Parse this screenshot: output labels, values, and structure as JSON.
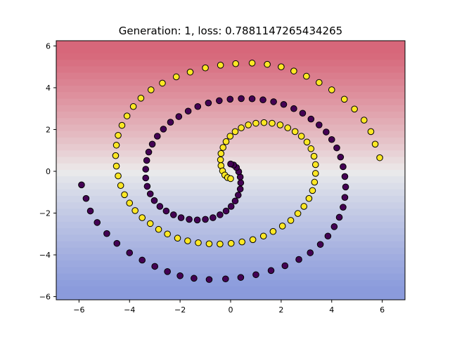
{
  "chart_data": {
    "type": "scatter",
    "title": "Generation: 1, loss: 0.7881147265434265",
    "xlabel": "",
    "ylabel": "",
    "xlim": [
      -6.9,
      6.9
    ],
    "ylim": [
      -6.15,
      6.25
    ],
    "x_ticks": [
      -6,
      -4,
      -2,
      0,
      2,
      4,
      6
    ],
    "y_ticks": [
      -6,
      -4,
      -2,
      0,
      2,
      4,
      6
    ],
    "grid": false,
    "legend": "none",
    "background": {
      "kind": "horizontal-bands",
      "top_color": "#d7677a",
      "mid_color": "#ececec",
      "bottom_color": "#8b9bdc",
      "note_values": "decision surface varies with y only"
    },
    "class_colors": {
      "0": "#440154",
      "1": "#fde725"
    },
    "edge_color": "#000000",
    "series": [
      {
        "class": 1,
        "points": [
          [
            5.9,
            0.65
          ],
          [
            5.72,
            1.3
          ],
          [
            5.55,
            1.9
          ],
          [
            5.28,
            2.45
          ],
          [
            4.9,
            2.98
          ],
          [
            4.5,
            3.45
          ],
          [
            4.0,
            3.9
          ],
          [
            3.5,
            4.25
          ],
          [
            3.0,
            4.55
          ],
          [
            2.5,
            4.8
          ],
          [
            2.0,
            5.0
          ],
          [
            1.45,
            5.12
          ],
          [
            0.85,
            5.18
          ],
          [
            0.2,
            5.15
          ],
          [
            -0.4,
            5.08
          ],
          [
            -1.0,
            4.95
          ],
          [
            -1.6,
            4.75
          ],
          [
            -2.15,
            4.52
          ],
          [
            -2.7,
            4.22
          ],
          [
            -3.15,
            3.9
          ],
          [
            -3.55,
            3.5
          ],
          [
            -3.85,
            3.1
          ],
          [
            -4.1,
            2.65
          ],
          [
            -4.3,
            2.2
          ],
          [
            -4.45,
            1.72
          ],
          [
            -4.52,
            1.25
          ],
          [
            -4.55,
            0.75
          ],
          [
            -4.52,
            0.25
          ],
          [
            -4.45,
            -0.22
          ],
          [
            -4.35,
            -0.68
          ],
          [
            -4.2,
            -1.12
          ],
          [
            -4.0,
            -1.52
          ],
          [
            -3.78,
            -1.88
          ],
          [
            -3.5,
            -2.22
          ],
          [
            -3.18,
            -2.5
          ],
          [
            -2.85,
            -2.78
          ],
          [
            -2.5,
            -3.0
          ],
          [
            -2.1,
            -3.2
          ],
          [
            -1.7,
            -3.33
          ],
          [
            -1.28,
            -3.42
          ],
          [
            -0.85,
            -3.47
          ],
          [
            -0.42,
            -3.48
          ],
          [
            0.02,
            -3.45
          ],
          [
            0.45,
            -3.38
          ],
          [
            0.88,
            -3.27
          ],
          [
            1.3,
            -3.1
          ],
          [
            1.68,
            -2.88
          ],
          [
            2.05,
            -2.62
          ],
          [
            2.38,
            -2.35
          ],
          [
            2.66,
            -2.02
          ],
          [
            2.9,
            -1.68
          ],
          [
            3.1,
            -1.3
          ],
          [
            3.24,
            -0.92
          ],
          [
            3.32,
            -0.52
          ],
          [
            3.36,
            -0.1
          ],
          [
            3.36,
            0.32
          ],
          [
            3.3,
            0.72
          ],
          [
            3.18,
            1.08
          ],
          [
            3.02,
            1.4
          ],
          [
            2.8,
            1.68
          ],
          [
            2.55,
            1.9
          ],
          [
            2.26,
            2.08
          ],
          [
            1.96,
            2.22
          ],
          [
            1.64,
            2.3
          ],
          [
            1.32,
            2.33
          ],
          [
            1.0,
            2.3
          ],
          [
            0.7,
            2.22
          ],
          [
            0.42,
            2.08
          ],
          [
            0.18,
            1.9
          ],
          [
            -0.02,
            1.68
          ],
          [
            -0.18,
            1.42
          ],
          [
            -0.3,
            1.14
          ],
          [
            -0.38,
            0.85
          ],
          [
            -0.4,
            0.55
          ],
          [
            -0.38,
            0.27
          ],
          [
            -0.32,
            0.02
          ],
          [
            -0.23,
            -0.18
          ],
          [
            -0.12,
            -0.3
          ],
          [
            0.0,
            -0.35
          ]
        ]
      },
      {
        "class": 0,
        "points": [
          [
            -5.9,
            -0.65
          ],
          [
            -5.72,
            -1.3
          ],
          [
            -5.55,
            -1.9
          ],
          [
            -5.28,
            -2.45
          ],
          [
            -4.9,
            -2.98
          ],
          [
            -4.5,
            -3.45
          ],
          [
            -4.0,
            -3.9
          ],
          [
            -3.5,
            -4.25
          ],
          [
            -3.0,
            -4.55
          ],
          [
            -2.5,
            -4.8
          ],
          [
            -2.0,
            -5.0
          ],
          [
            -1.45,
            -5.12
          ],
          [
            -0.85,
            -5.18
          ],
          [
            -0.2,
            -5.15
          ],
          [
            0.4,
            -5.08
          ],
          [
            1.0,
            -4.95
          ],
          [
            1.6,
            -4.75
          ],
          [
            2.15,
            -4.52
          ],
          [
            2.7,
            -4.22
          ],
          [
            3.15,
            -3.9
          ],
          [
            3.55,
            -3.5
          ],
          [
            3.85,
            -3.1
          ],
          [
            4.1,
            -2.65
          ],
          [
            4.3,
            -2.2
          ],
          [
            4.45,
            -1.72
          ],
          [
            4.52,
            -1.25
          ],
          [
            4.55,
            -0.75
          ],
          [
            4.52,
            -0.25
          ],
          [
            4.45,
            0.22
          ],
          [
            4.35,
            0.68
          ],
          [
            4.2,
            1.12
          ],
          [
            4.0,
            1.52
          ],
          [
            3.78,
            1.88
          ],
          [
            3.5,
            2.22
          ],
          [
            3.18,
            2.5
          ],
          [
            2.85,
            2.78
          ],
          [
            2.5,
            3.0
          ],
          [
            2.1,
            3.2
          ],
          [
            1.7,
            3.33
          ],
          [
            1.28,
            3.42
          ],
          [
            0.85,
            3.47
          ],
          [
            0.42,
            3.48
          ],
          [
            -0.02,
            3.45
          ],
          [
            -0.45,
            3.38
          ],
          [
            -0.88,
            3.27
          ],
          [
            -1.3,
            3.1
          ],
          [
            -1.68,
            2.88
          ],
          [
            -2.05,
            2.62
          ],
          [
            -2.38,
            2.35
          ],
          [
            -2.66,
            2.02
          ],
          [
            -2.9,
            1.68
          ],
          [
            -3.1,
            1.3
          ],
          [
            -3.24,
            0.92
          ],
          [
            -3.32,
            0.52
          ],
          [
            -3.36,
            0.1
          ],
          [
            -3.36,
            -0.32
          ],
          [
            -3.3,
            -0.72
          ],
          [
            -3.18,
            -1.08
          ],
          [
            -3.02,
            -1.4
          ],
          [
            -2.8,
            -1.68
          ],
          [
            -2.55,
            -1.9
          ],
          [
            -2.26,
            -2.08
          ],
          [
            -1.96,
            -2.22
          ],
          [
            -1.64,
            -2.3
          ],
          [
            -1.32,
            -2.33
          ],
          [
            -1.0,
            -2.3
          ],
          [
            -0.7,
            -2.22
          ],
          [
            -0.42,
            -2.08
          ],
          [
            -0.18,
            -1.9
          ],
          [
            0.02,
            -1.68
          ],
          [
            0.18,
            -1.42
          ],
          [
            0.3,
            -1.14
          ],
          [
            0.38,
            -0.85
          ],
          [
            0.4,
            -0.55
          ],
          [
            0.38,
            -0.27
          ],
          [
            0.32,
            -0.02
          ],
          [
            0.23,
            0.18
          ],
          [
            0.12,
            0.3
          ],
          [
            0.0,
            0.35
          ]
        ]
      }
    ]
  }
}
